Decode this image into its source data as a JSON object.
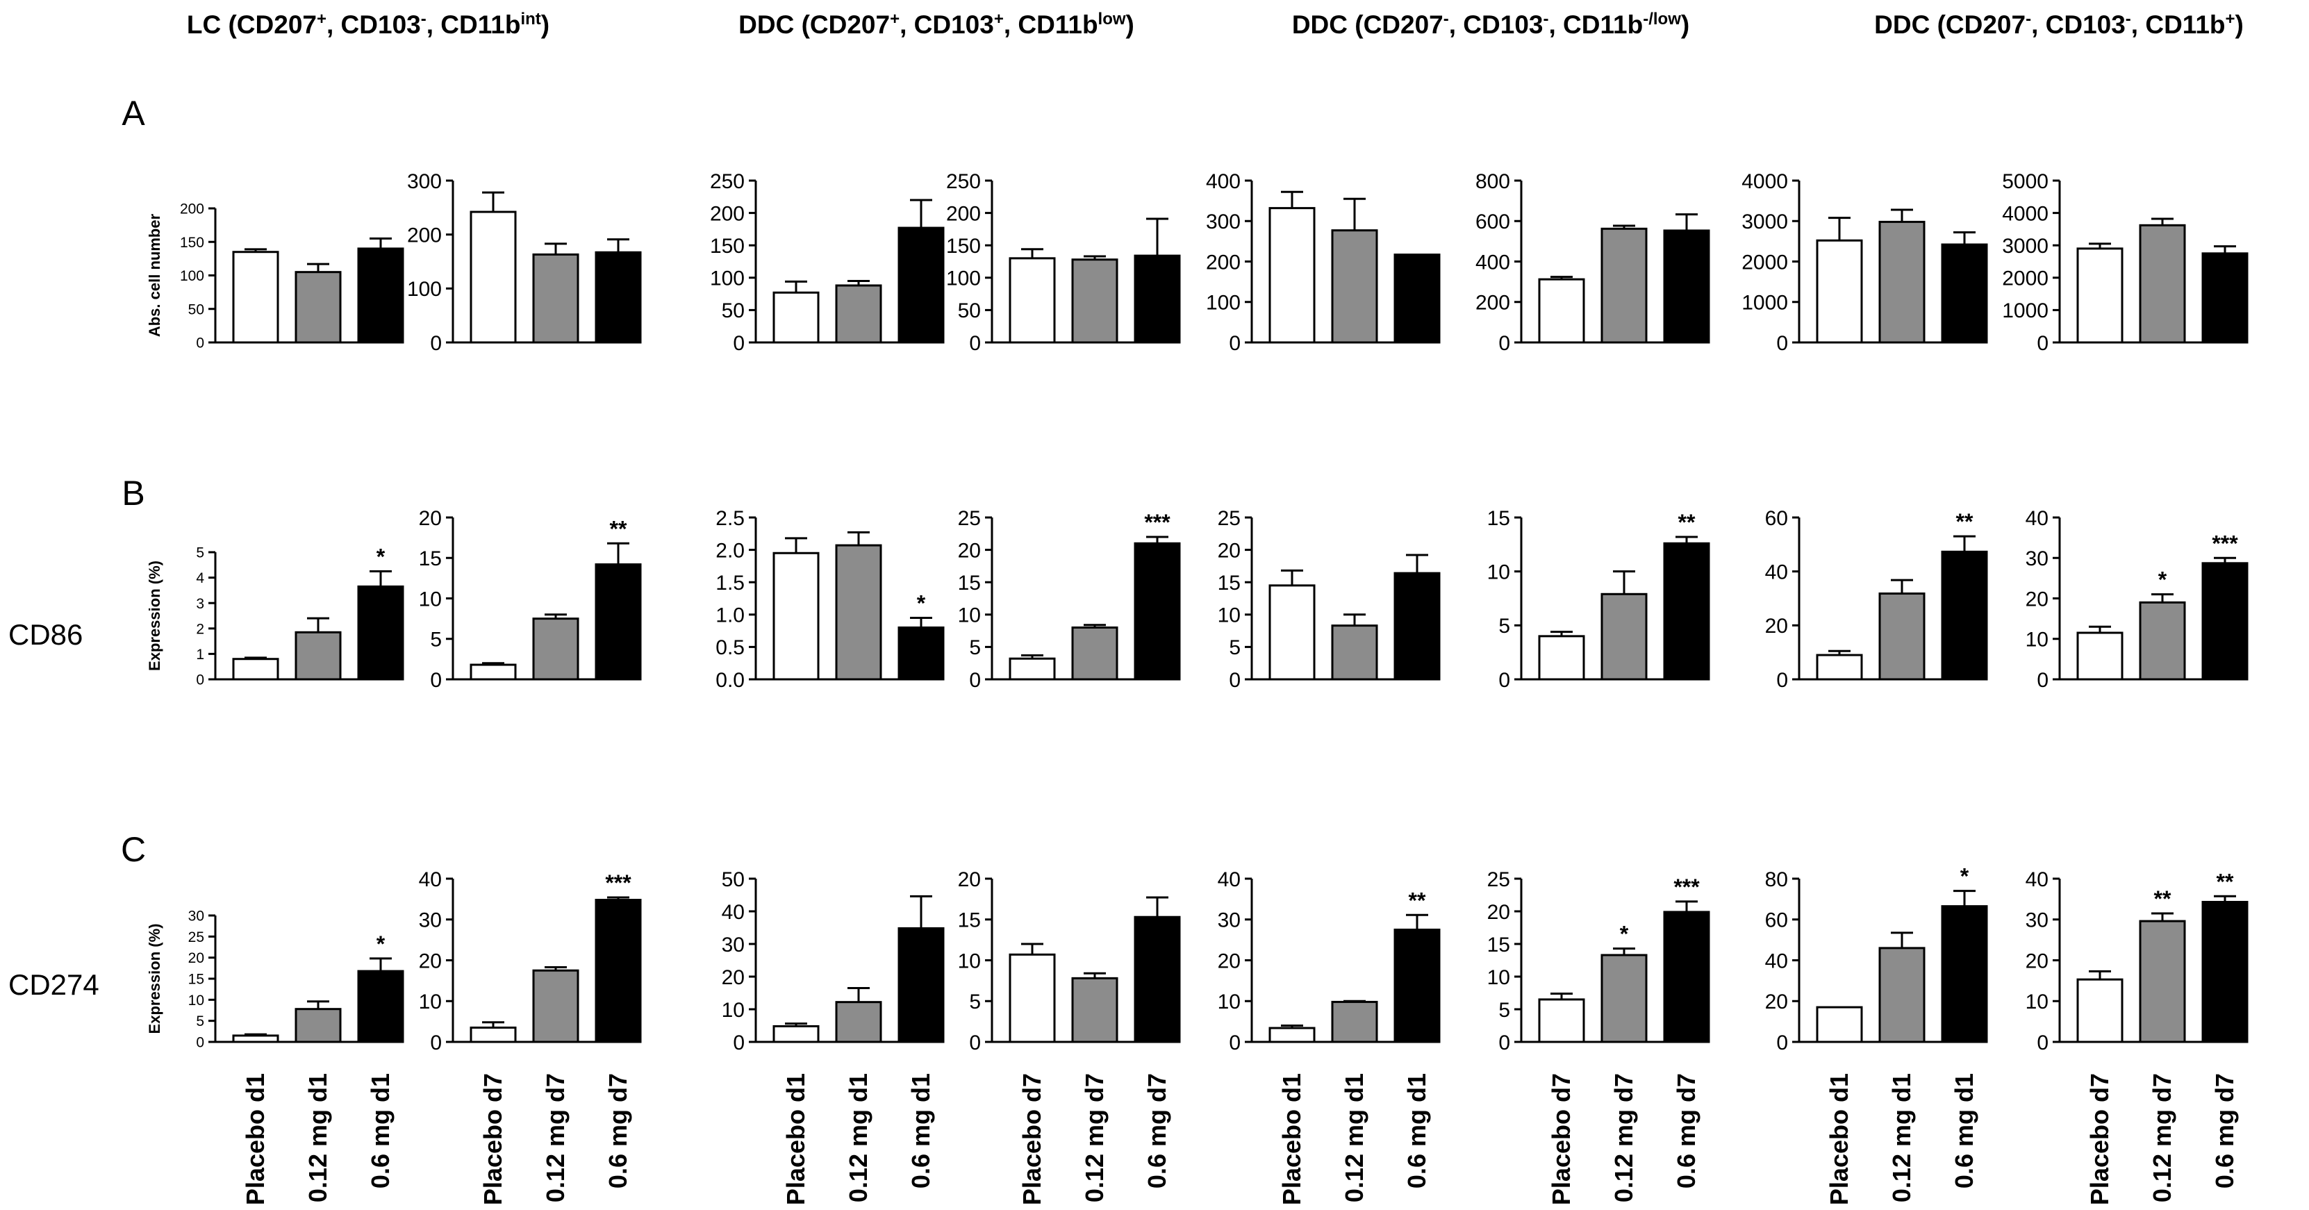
{
  "figure": {
    "column_headers": [
      {
        "main": "LC (CD207",
        "sup1": "+",
        "mid1": ", CD103",
        "sup2": "-",
        "mid2": ", CD11b",
        "sup3": "int",
        "end": ")"
      },
      {
        "main": "DDC (CD207",
        "sup1": "+",
        "mid1": ", CD103",
        "sup2": "+",
        "mid2": ", CD11b",
        "sup3": "low",
        "end": ")"
      },
      {
        "main": "DDC (CD207",
        "sup1": "-",
        "mid1": ", CD103",
        "sup2": "-",
        "mid2": ", CD11b",
        "sup3": "-/low",
        "end": ")"
      },
      {
        "main": "DDC (CD207",
        "sup1": "-",
        "mid1": ", CD103",
        "sup2": "-",
        "mid2": ", CD11b",
        "sup3": "+",
        "end": ")"
      }
    ],
    "row_letters": [
      "A",
      "B",
      "C"
    ],
    "row_markers": [
      "",
      "CD86",
      "CD274"
    ],
    "row_ylabels": [
      "Abs. cell number",
      "Expression (%)",
      "Expression (%)"
    ],
    "bar_colors": [
      "#ffffff",
      "#8c8c8c",
      "#000000"
    ],
    "x_labels_d1": [
      "Placebo d1",
      "0.12 mg d1",
      "0.6 mg d1"
    ],
    "x_labels_d7": [
      "Placebo d7",
      "0.12 mg d7",
      "0.6 mg d7"
    ]
  },
  "chart_data": [
    {
      "type": "bar",
      "row": "A",
      "col": 1,
      "categories": [
        "Placebo d1",
        "0.12 mg d1",
        "0.6 mg d1"
      ],
      "values": [
        135,
        105,
        140
      ],
      "errors": [
        4,
        12,
        15
      ],
      "sig": [
        "",
        "",
        ""
      ],
      "ylim": [
        0,
        200
      ],
      "yticks": [
        0,
        50,
        100,
        150,
        200
      ],
      "ylabel": "Abs. cell number"
    },
    {
      "type": "bar",
      "row": "A",
      "col": 2,
      "categories": [
        "Placebo d7",
        "0.12 mg d7",
        "0.6 mg d7"
      ],
      "values": [
        242,
        163,
        167
      ],
      "errors": [
        36,
        20,
        24
      ],
      "sig": [
        "",
        "",
        ""
      ],
      "ylim": [
        0,
        300
      ],
      "yticks": [
        0,
        100,
        200,
        300
      ],
      "ylabel": ""
    },
    {
      "type": "bar",
      "row": "A",
      "col": 3,
      "categories": [
        "Placebo d1",
        "0.12 mg d1",
        "0.6 mg d1"
      ],
      "values": [
        77,
        88,
        177
      ],
      "errors": [
        17,
        7,
        43
      ],
      "sig": [
        "",
        "",
        ""
      ],
      "ylim": [
        0,
        250
      ],
      "yticks": [
        0,
        50,
        100,
        150,
        200,
        250
      ],
      "ylabel": ""
    },
    {
      "type": "bar",
      "row": "A",
      "col": 4,
      "categories": [
        "Placebo d7",
        "0.12 mg d7",
        "0.6 mg d7"
      ],
      "values": [
        130,
        128,
        134
      ],
      "errors": [
        14,
        5,
        57
      ],
      "sig": [
        "",
        "",
        ""
      ],
      "ylim": [
        0,
        250
      ],
      "yticks": [
        0,
        50,
        100,
        150,
        200,
        250
      ],
      "ylabel": ""
    },
    {
      "type": "bar",
      "row": "A",
      "col": 5,
      "categories": [
        "Placebo d1",
        "0.12 mg d1",
        "0.6 mg d1"
      ],
      "values": [
        332,
        277,
        217
      ],
      "errors": [
        40,
        78,
        0
      ],
      "sig": [
        "",
        "",
        ""
      ],
      "ylim": [
        0,
        400
      ],
      "yticks": [
        0,
        100,
        200,
        300,
        400
      ],
      "ylabel": ""
    },
    {
      "type": "bar",
      "row": "A",
      "col": 6,
      "categories": [
        "Placebo d7",
        "0.12 mg d7",
        "0.6 mg d7"
      ],
      "values": [
        312,
        562,
        553
      ],
      "errors": [
        12,
        15,
        80
      ],
      "sig": [
        "",
        "",
        ""
      ],
      "ylim": [
        0,
        800
      ],
      "yticks": [
        0,
        200,
        400,
        600,
        800
      ],
      "ylabel": ""
    },
    {
      "type": "bar",
      "row": "A",
      "col": 7,
      "categories": [
        "Placebo d1",
        "0.12 mg d1",
        "0.6 mg d1"
      ],
      "values": [
        2520,
        2980,
        2420
      ],
      "errors": [
        560,
        300,
        300
      ],
      "sig": [
        "",
        "",
        ""
      ],
      "ylim": [
        0,
        4000
      ],
      "yticks": [
        0,
        1000,
        2000,
        3000,
        4000
      ],
      "ylabel": ""
    },
    {
      "type": "bar",
      "row": "A",
      "col": 8,
      "categories": [
        "Placebo d7",
        "0.12 mg d7",
        "0.6 mg d7"
      ],
      "values": [
        2900,
        3620,
        2750
      ],
      "errors": [
        150,
        200,
        220
      ],
      "sig": [
        "",
        "",
        ""
      ],
      "ylim": [
        0,
        5000
      ],
      "yticks": [
        0,
        1000,
        2000,
        3000,
        4000,
        5000
      ],
      "ylabel": ""
    },
    {
      "type": "bar",
      "row": "B",
      "col": 1,
      "categories": [
        "Placebo d1",
        "0.12 mg d1",
        "0.6 mg d1"
      ],
      "values": [
        0.8,
        1.85,
        3.65
      ],
      "errors": [
        0.05,
        0.55,
        0.6
      ],
      "sig": [
        "",
        "",
        "*"
      ],
      "ylim": [
        0,
        5
      ],
      "yticks": [
        0,
        1,
        2,
        3,
        4,
        5
      ],
      "ylabel": "Expression (%)"
    },
    {
      "type": "bar",
      "row": "B",
      "col": 2,
      "categories": [
        "Placebo d7",
        "0.12 mg d7",
        "0.6 mg d7"
      ],
      "values": [
        1.8,
        7.5,
        14.2
      ],
      "errors": [
        0.2,
        0.5,
        2.6
      ],
      "sig": [
        "",
        "",
        "**"
      ],
      "ylim": [
        0,
        20
      ],
      "yticks": [
        0,
        5,
        10,
        15,
        20
      ],
      "ylabel": ""
    },
    {
      "type": "bar",
      "row": "B",
      "col": 3,
      "categories": [
        "Placebo d1",
        "0.12 mg d1",
        "0.6 mg d1"
      ],
      "values": [
        1.95,
        2.07,
        0.8
      ],
      "errors": [
        0.23,
        0.2,
        0.15
      ],
      "sig": [
        "",
        "",
        "*"
      ],
      "ylim": [
        0,
        2.5
      ],
      "yticks": [
        0.0,
        0.5,
        1.0,
        1.5,
        2.0,
        2.5
      ],
      "ylabel": ""
    },
    {
      "type": "bar",
      "row": "B",
      "col": 4,
      "categories": [
        "Placebo d7",
        "0.12 mg d7",
        "0.6 mg d7"
      ],
      "values": [
        3.2,
        8.0,
        21.0
      ],
      "errors": [
        0.5,
        0.4,
        1.0
      ],
      "sig": [
        "",
        "",
        "***"
      ],
      "ylim": [
        0,
        25
      ],
      "yticks": [
        0,
        5,
        10,
        15,
        20,
        25
      ],
      "ylabel": ""
    },
    {
      "type": "bar",
      "row": "B",
      "col": 5,
      "categories": [
        "Placebo d1",
        "0.12 mg d1",
        "0.6 mg d1"
      ],
      "values": [
        14.5,
        8.3,
        16.4
      ],
      "errors": [
        2.3,
        1.7,
        2.8
      ],
      "sig": [
        "",
        "",
        ""
      ],
      "ylim": [
        0,
        25
      ],
      "yticks": [
        0,
        5,
        10,
        15,
        20,
        25
      ],
      "ylabel": ""
    },
    {
      "type": "bar",
      "row": "B",
      "col": 6,
      "categories": [
        "Placebo d7",
        "0.12 mg d7",
        "0.6 mg d7"
      ],
      "values": [
        4.0,
        7.9,
        12.6
      ],
      "errors": [
        0.4,
        2.1,
        0.6
      ],
      "sig": [
        "",
        "",
        "**"
      ],
      "ylim": [
        0,
        15
      ],
      "yticks": [
        0,
        5,
        10,
        15
      ],
      "ylabel": ""
    },
    {
      "type": "bar",
      "row": "B",
      "col": 7,
      "categories": [
        "Placebo d1",
        "0.12 mg d1",
        "0.6 mg d1"
      ],
      "values": [
        9.0,
        31.8,
        47.3
      ],
      "errors": [
        1.5,
        5.0,
        5.7
      ],
      "sig": [
        "",
        "",
        "**"
      ],
      "ylim": [
        0,
        60
      ],
      "yticks": [
        0,
        20,
        40,
        60
      ],
      "ylabel": ""
    },
    {
      "type": "bar",
      "row": "B",
      "col": 8,
      "categories": [
        "Placebo d7",
        "0.12 mg d7",
        "0.6 mg d7"
      ],
      "values": [
        11.5,
        19.0,
        28.7
      ],
      "errors": [
        1.5,
        2.0,
        1.3
      ],
      "sig": [
        "",
        "*",
        "***"
      ],
      "ylim": [
        0,
        40
      ],
      "yticks": [
        0,
        10,
        20,
        30,
        40
      ],
      "ylabel": ""
    },
    {
      "type": "bar",
      "row": "C",
      "col": 1,
      "categories": [
        "Placebo d1",
        "0.12 mg d1",
        "0.6 mg d1"
      ],
      "values": [
        1.5,
        7.8,
        16.8
      ],
      "errors": [
        0.3,
        1.8,
        3.0
      ],
      "sig": [
        "",
        "",
        "*"
      ],
      "ylim": [
        0,
        30
      ],
      "yticks": [
        0,
        5,
        10,
        15,
        20,
        25,
        30
      ],
      "ylabel": "Expression (%)"
    },
    {
      "type": "bar",
      "row": "C",
      "col": 2,
      "categories": [
        "Placebo d7",
        "0.12 mg d7",
        "0.6 mg d7"
      ],
      "values": [
        3.5,
        17.5,
        34.8
      ],
      "errors": [
        1.3,
        0.8,
        0.6
      ],
      "sig": [
        "",
        "",
        "***"
      ],
      "ylim": [
        0,
        40
      ],
      "yticks": [
        0,
        10,
        20,
        30,
        40
      ],
      "ylabel": ""
    },
    {
      "type": "bar",
      "row": "C",
      "col": 3,
      "categories": [
        "Placebo d1",
        "0.12 mg d1",
        "0.6 mg d1"
      ],
      "values": [
        4.8,
        12.2,
        34.8
      ],
      "errors": [
        0.8,
        4.3,
        9.8
      ],
      "sig": [
        "",
        "",
        ""
      ],
      "ylim": [
        0,
        50
      ],
      "yticks": [
        0,
        10,
        20,
        30,
        40,
        50
      ],
      "ylabel": ""
    },
    {
      "type": "bar",
      "row": "C",
      "col": 4,
      "categories": [
        "Placebo d7",
        "0.12 mg d7",
        "0.6 mg d7"
      ],
      "values": [
        10.7,
        7.8,
        15.3
      ],
      "errors": [
        1.3,
        0.6,
        2.4
      ],
      "sig": [
        "",
        "",
        ""
      ],
      "ylim": [
        0,
        20
      ],
      "yticks": [
        0,
        5,
        10,
        15,
        20
      ],
      "ylabel": ""
    },
    {
      "type": "bar",
      "row": "C",
      "col": 5,
      "categories": [
        "Placebo d1",
        "0.12 mg d1",
        "0.6 mg d1"
      ],
      "values": [
        3.4,
        9.8,
        27.5
      ],
      "errors": [
        0.6,
        0.2,
        3.6
      ],
      "sig": [
        "",
        "",
        "**"
      ],
      "ylim": [
        0,
        40
      ],
      "yticks": [
        0,
        10,
        20,
        30,
        40
      ],
      "ylabel": ""
    },
    {
      "type": "bar",
      "row": "C",
      "col": 6,
      "categories": [
        "Placebo d7",
        "0.12 mg d7",
        "0.6 mg d7"
      ],
      "values": [
        6.5,
        13.3,
        19.9
      ],
      "errors": [
        0.9,
        1.0,
        1.6
      ],
      "sig": [
        "",
        "*",
        "***"
      ],
      "ylim": [
        0,
        25
      ],
      "yticks": [
        0,
        5,
        10,
        15,
        20,
        25
      ],
      "ylabel": ""
    },
    {
      "type": "bar",
      "row": "C",
      "col": 7,
      "categories": [
        "Placebo d1",
        "0.12 mg d1",
        "0.6 mg d1"
      ],
      "values": [
        17.0,
        46.0,
        66.5
      ],
      "errors": [
        0,
        7.5,
        7.5
      ],
      "sig": [
        "",
        "",
        "*"
      ],
      "ylim": [
        0,
        80
      ],
      "yticks": [
        0,
        20,
        40,
        60,
        80
      ],
      "ylabel": ""
    },
    {
      "type": "bar",
      "row": "C",
      "col": 8,
      "categories": [
        "Placebo d7",
        "0.12 mg d7",
        "0.6 mg d7"
      ],
      "values": [
        15.3,
        29.6,
        34.3
      ],
      "errors": [
        2.0,
        1.9,
        1.4
      ],
      "sig": [
        "",
        "**",
        "**"
      ],
      "ylim": [
        0,
        40
      ],
      "yticks": [
        0,
        10,
        20,
        30,
        40
      ],
      "ylabel": ""
    }
  ]
}
